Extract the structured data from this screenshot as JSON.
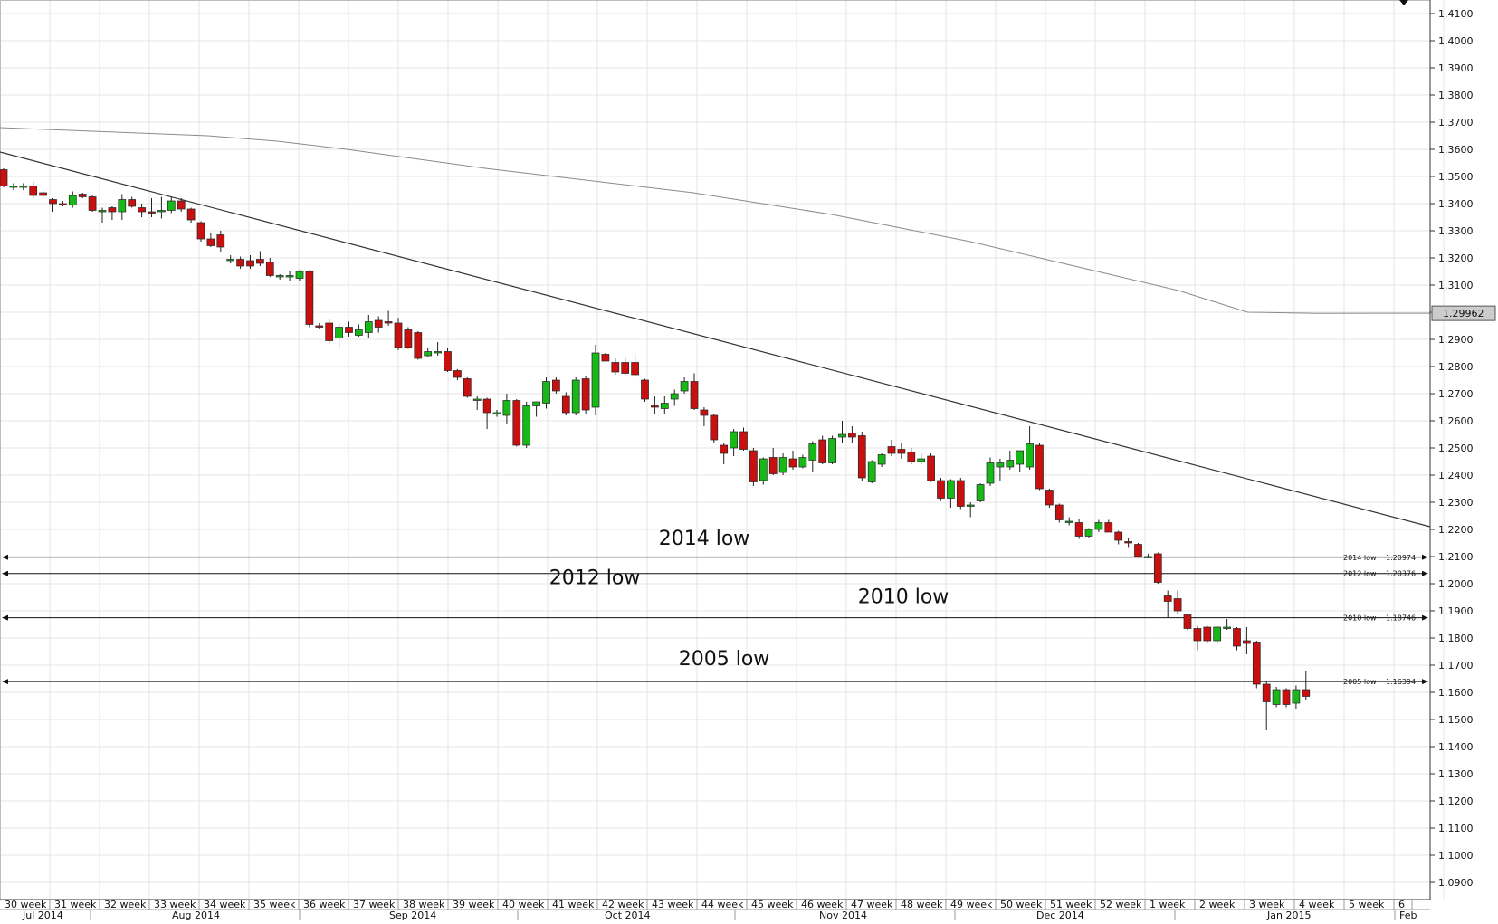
{
  "chart_data": {
    "type": "candlestick",
    "symbol": "EUR/USD",
    "timeframe": "daily",
    "ylim": [
      1.085,
      1.415
    ],
    "y_ticks": [
      1.41,
      1.4,
      1.39,
      1.38,
      1.37,
      1.36,
      1.35,
      1.34,
      1.33,
      1.32,
      1.31,
      1.3,
      1.29,
      1.28,
      1.27,
      1.26,
      1.25,
      1.24,
      1.23,
      1.22,
      1.21,
      1.2,
      1.19,
      1.18,
      1.17,
      1.16,
      1.15,
      1.14,
      1.13,
      1.12,
      1.11,
      1.1,
      1.09
    ],
    "y_tick_labels": [
      "1.4100",
      "1.4000",
      "1.3900",
      "1.3800",
      "1.3700",
      "1.3600",
      "1.3500",
      "1.3400",
      "1.3300",
      "1.3200",
      "1.3100",
      "1.3000",
      "1.2900",
      "1.2800",
      "1.2700",
      "1.2600",
      "1.2500",
      "1.2400",
      "1.2300",
      "1.2200",
      "1.2100",
      "1.2000",
      "1.1900",
      "1.1800",
      "1.1700",
      "1.1600",
      "1.1500",
      "1.1400",
      "1.1300",
      "1.1200",
      "1.1100",
      "1.1000",
      "1.0900"
    ],
    "week_labels": [
      "30 week",
      "31 week",
      "32 week",
      "33 week",
      "34 week",
      "35 week",
      "36 week",
      "37 week",
      "38 week",
      "39 week",
      "40 week",
      "41 week",
      "42 week",
      "43 week",
      "44 week",
      "45 week",
      "46 week",
      "47 week",
      "48 week",
      "49 week",
      "50 week",
      "51 week",
      "52 week",
      "1 week",
      "2 week",
      "3 week",
      "4 week",
      "5 week",
      "6"
    ],
    "month_labels": [
      "Jul 2014",
      "Aug 2014",
      "Sep 2014",
      "Oct 2014",
      "Nov 2014",
      "Dec 2014",
      "Jan 2015",
      "Feb"
    ],
    "current_price": 1.29962,
    "current_price_label": "1.29962",
    "levels": [
      {
        "name": "2014 low",
        "value": 1.20974,
        "value_label": "1.20974",
        "annotation": "2014 low"
      },
      {
        "name": "2012 low",
        "value": 1.20376,
        "value_label": "1.20376",
        "annotation": "2012 low"
      },
      {
        "name": "2010 low",
        "value": 1.18746,
        "value_label": "1.18746",
        "annotation": "2010 low"
      },
      {
        "name": "2005 low",
        "value": 1.16394,
        "value_label": "1.16394",
        "annotation": "2005 low"
      }
    ],
    "trendline": {
      "start_value": 1.359,
      "end_value": 1.221
    },
    "moving_average": [
      1.368,
      1.367,
      1.366,
      1.365,
      1.363,
      1.36,
      1.3565,
      1.353,
      1.35,
      1.347,
      1.344,
      1.34,
      1.336,
      1.331,
      1.326,
      1.32,
      1.314,
      1.308,
      1.3,
      1.2996
    ],
    "candles": [
      {
        "o": 1.3525,
        "h": 1.353,
        "l": 1.346,
        "c": 1.3465
      },
      {
        "o": 1.3465,
        "h": 1.3475,
        "l": 1.345,
        "c": 1.3465
      },
      {
        "o": 1.3465,
        "h": 1.3475,
        "l": 1.345,
        "c": 1.3465
      },
      {
        "o": 1.3465,
        "h": 1.348,
        "l": 1.342,
        "c": 1.343
      },
      {
        "o": 1.344,
        "h": 1.345,
        "l": 1.3425,
        "c": 1.343
      },
      {
        "o": 1.3415,
        "h": 1.342,
        "l": 1.337,
        "c": 1.34
      },
      {
        "o": 1.34,
        "h": 1.341,
        "l": 1.339,
        "c": 1.3395
      },
      {
        "o": 1.3395,
        "h": 1.3445,
        "l": 1.3385,
        "c": 1.343
      },
      {
        "o": 1.3435,
        "h": 1.344,
        "l": 1.342,
        "c": 1.3425
      },
      {
        "o": 1.3425,
        "h": 1.343,
        "l": 1.337,
        "c": 1.3375
      },
      {
        "o": 1.337,
        "h": 1.3385,
        "l": 1.333,
        "c": 1.3375
      },
      {
        "o": 1.3385,
        "h": 1.339,
        "l": 1.334,
        "c": 1.337
      },
      {
        "o": 1.337,
        "h": 1.3435,
        "l": 1.334,
        "c": 1.3415
      },
      {
        "o": 1.3415,
        "h": 1.3425,
        "l": 1.3385,
        "c": 1.339
      },
      {
        "o": 1.3385,
        "h": 1.34,
        "l": 1.335,
        "c": 1.337
      },
      {
        "o": 1.337,
        "h": 1.342,
        "l": 1.335,
        "c": 1.3365
      },
      {
        "o": 1.337,
        "h": 1.3425,
        "l": 1.3345,
        "c": 1.3375
      },
      {
        "o": 1.3375,
        "h": 1.3425,
        "l": 1.3365,
        "c": 1.341
      },
      {
        "o": 1.341,
        "h": 1.342,
        "l": 1.337,
        "c": 1.338
      },
      {
        "o": 1.338,
        "h": 1.3385,
        "l": 1.333,
        "c": 1.334
      },
      {
        "o": 1.333,
        "h": 1.3335,
        "l": 1.326,
        "c": 1.327
      },
      {
        "o": 1.327,
        "h": 1.329,
        "l": 1.324,
        "c": 1.3245
      },
      {
        "o": 1.3285,
        "h": 1.33,
        "l": 1.322,
        "c": 1.324
      },
      {
        "o": 1.3195,
        "h": 1.321,
        "l": 1.318,
        "c": 1.3195
      },
      {
        "o": 1.3195,
        "h": 1.3205,
        "l": 1.316,
        "c": 1.317
      },
      {
        "o": 1.319,
        "h": 1.321,
        "l": 1.316,
        "c": 1.317
      },
      {
        "o": 1.3195,
        "h": 1.3225,
        "l": 1.317,
        "c": 1.318
      },
      {
        "o": 1.3185,
        "h": 1.32,
        "l": 1.313,
        "c": 1.3135
      },
      {
        "o": 1.3135,
        "h": 1.314,
        "l": 1.312,
        "c": 1.3135
      },
      {
        "o": 1.313,
        "h": 1.315,
        "l": 1.3115,
        "c": 1.3135
      },
      {
        "o": 1.3125,
        "h": 1.3155,
        "l": 1.3115,
        "c": 1.315
      },
      {
        "o": 1.315,
        "h": 1.3155,
        "l": 1.2945,
        "c": 1.2955
      },
      {
        "o": 1.295,
        "h": 1.296,
        "l": 1.294,
        "c": 1.2945
      },
      {
        "o": 1.296,
        "h": 1.2975,
        "l": 1.2885,
        "c": 1.2895
      },
      {
        "o": 1.2905,
        "h": 1.296,
        "l": 1.2865,
        "c": 1.2945
      },
      {
        "o": 1.2945,
        "h": 1.2965,
        "l": 1.291,
        "c": 1.2925
      },
      {
        "o": 1.2915,
        "h": 1.2955,
        "l": 1.291,
        "c": 1.2935
      },
      {
        "o": 1.2925,
        "h": 1.299,
        "l": 1.2905,
        "c": 1.2965
      },
      {
        "o": 1.297,
        "h": 1.2985,
        "l": 1.2925,
        "c": 1.2945
      },
      {
        "o": 1.2965,
        "h": 1.3005,
        "l": 1.295,
        "c": 1.296
      },
      {
        "o": 1.296,
        "h": 1.298,
        "l": 1.286,
        "c": 1.287
      },
      {
        "o": 1.2935,
        "h": 1.2945,
        "l": 1.2865,
        "c": 1.287
      },
      {
        "o": 1.2925,
        "h": 1.293,
        "l": 1.2825,
        "c": 1.283
      },
      {
        "o": 1.284,
        "h": 1.287,
        "l": 1.2835,
        "c": 1.2855
      },
      {
        "o": 1.285,
        "h": 1.289,
        "l": 1.284,
        "c": 1.2855
      },
      {
        "o": 1.2855,
        "h": 1.287,
        "l": 1.278,
        "c": 1.2785
      },
      {
        "o": 1.2785,
        "h": 1.279,
        "l": 1.275,
        "c": 1.276
      },
      {
        "o": 1.2755,
        "h": 1.276,
        "l": 1.2685,
        "c": 1.269
      },
      {
        "o": 1.268,
        "h": 1.269,
        "l": 1.264,
        "c": 1.268
      },
      {
        "o": 1.268,
        "h": 1.2685,
        "l": 1.257,
        "c": 1.263
      },
      {
        "o": 1.263,
        "h": 1.264,
        "l": 1.2615,
        "c": 1.263
      },
      {
        "o": 1.262,
        "h": 1.27,
        "l": 1.259,
        "c": 1.2675
      },
      {
        "o": 1.2675,
        "h": 1.268,
        "l": 1.2505,
        "c": 1.251
      },
      {
        "o": 1.251,
        "h": 1.267,
        "l": 1.25,
        "c": 1.2655
      },
      {
        "o": 1.2655,
        "h": 1.2665,
        "l": 1.2615,
        "c": 1.267
      },
      {
        "o": 1.2665,
        "h": 1.276,
        "l": 1.2645,
        "c": 1.2745
      },
      {
        "o": 1.275,
        "h": 1.276,
        "l": 1.27,
        "c": 1.271
      },
      {
        "o": 1.269,
        "h": 1.2705,
        "l": 1.262,
        "c": 1.263
      },
      {
        "o": 1.263,
        "h": 1.276,
        "l": 1.262,
        "c": 1.275
      },
      {
        "o": 1.2755,
        "h": 1.2765,
        "l": 1.2625,
        "c": 1.264
      },
      {
        "o": 1.265,
        "h": 1.288,
        "l": 1.262,
        "c": 1.285
      },
      {
        "o": 1.2845,
        "h": 1.285,
        "l": 1.282,
        "c": 1.282
      },
      {
        "o": 1.2815,
        "h": 1.283,
        "l": 1.277,
        "c": 1.278
      },
      {
        "o": 1.2815,
        "h": 1.283,
        "l": 1.277,
        "c": 1.2775
      },
      {
        "o": 1.2815,
        "h": 1.2845,
        "l": 1.276,
        "c": 1.277
      },
      {
        "o": 1.275,
        "h": 1.2755,
        "l": 1.267,
        "c": 1.268
      },
      {
        "o": 1.2655,
        "h": 1.269,
        "l": 1.2625,
        "c": 1.265
      },
      {
        "o": 1.2645,
        "h": 1.269,
        "l": 1.2625,
        "c": 1.2665
      },
      {
        "o": 1.268,
        "h": 1.2715,
        "l": 1.2655,
        "c": 1.27
      },
      {
        "o": 1.271,
        "h": 1.276,
        "l": 1.27,
        "c": 1.2745
      },
      {
        "o": 1.2745,
        "h": 1.2775,
        "l": 1.264,
        "c": 1.2645
      },
      {
        "o": 1.264,
        "h": 1.265,
        "l": 1.258,
        "c": 1.262
      },
      {
        "o": 1.262,
        "h": 1.2625,
        "l": 1.252,
        "c": 1.253
      },
      {
        "o": 1.251,
        "h": 1.252,
        "l": 1.244,
        "c": 1.248
      },
      {
        "o": 1.25,
        "h": 1.257,
        "l": 1.247,
        "c": 1.256
      },
      {
        "o": 1.256,
        "h": 1.2575,
        "l": 1.249,
        "c": 1.2495
      },
      {
        "o": 1.249,
        "h": 1.25,
        "l": 1.236,
        "c": 1.2375
      },
      {
        "o": 1.238,
        "h": 1.2465,
        "l": 1.2365,
        "c": 1.246
      },
      {
        "o": 1.2465,
        "h": 1.25,
        "l": 1.24,
        "c": 1.2405
      },
      {
        "o": 1.241,
        "h": 1.248,
        "l": 1.24,
        "c": 1.2465
      },
      {
        "o": 1.246,
        "h": 1.249,
        "l": 1.242,
        "c": 1.243
      },
      {
        "o": 1.243,
        "h": 1.2475,
        "l": 1.2425,
        "c": 1.2465
      },
      {
        "o": 1.2455,
        "h": 1.2525,
        "l": 1.241,
        "c": 1.2515
      },
      {
        "o": 1.253,
        "h": 1.2545,
        "l": 1.244,
        "c": 1.2445
      },
      {
        "o": 1.2445,
        "h": 1.2545,
        "l": 1.244,
        "c": 1.2535
      },
      {
        "o": 1.254,
        "h": 1.26,
        "l": 1.252,
        "c": 1.255
      },
      {
        "o": 1.2555,
        "h": 1.258,
        "l": 1.252,
        "c": 1.254
      },
      {
        "o": 1.2545,
        "h": 1.256,
        "l": 1.238,
        "c": 1.239
      },
      {
        "o": 1.2375,
        "h": 1.2455,
        "l": 1.237,
        "c": 1.245
      },
      {
        "o": 1.244,
        "h": 1.248,
        "l": 1.243,
        "c": 1.2475
      },
      {
        "o": 1.2505,
        "h": 1.253,
        "l": 1.247,
        "c": 1.248
      },
      {
        "o": 1.2495,
        "h": 1.252,
        "l": 1.246,
        "c": 1.248
      },
      {
        "o": 1.2485,
        "h": 1.25,
        "l": 1.244,
        "c": 1.245
      },
      {
        "o": 1.245,
        "h": 1.248,
        "l": 1.244,
        "c": 1.246
      },
      {
        "o": 1.247,
        "h": 1.248,
        "l": 1.2375,
        "c": 1.238
      },
      {
        "o": 1.238,
        "h": 1.239,
        "l": 1.2305,
        "c": 1.2315
      },
      {
        "o": 1.2315,
        "h": 1.2385,
        "l": 1.228,
        "c": 1.238
      },
      {
        "o": 1.238,
        "h": 1.239,
        "l": 1.2275,
        "c": 1.2285
      },
      {
        "o": 1.229,
        "h": 1.23,
        "l": 1.2245,
        "c": 1.229
      },
      {
        "o": 1.2305,
        "h": 1.237,
        "l": 1.23,
        "c": 1.2365
      },
      {
        "o": 1.237,
        "h": 1.2465,
        "l": 1.236,
        "c": 1.2445
      },
      {
        "o": 1.243,
        "h": 1.246,
        "l": 1.238,
        "c": 1.2445
      },
      {
        "o": 1.243,
        "h": 1.249,
        "l": 1.242,
        "c": 1.2455
      },
      {
        "o": 1.244,
        "h": 1.249,
        "l": 1.241,
        "c": 1.249
      },
      {
        "o": 1.243,
        "h": 1.258,
        "l": 1.242,
        "c": 1.2515
      },
      {
        "o": 1.251,
        "h": 1.252,
        "l": 1.2345,
        "c": 1.235
      },
      {
        "o": 1.2345,
        "h": 1.235,
        "l": 1.228,
        "c": 1.229
      },
      {
        "o": 1.229,
        "h": 1.2295,
        "l": 1.2225,
        "c": 1.2235
      },
      {
        "o": 1.223,
        "h": 1.2245,
        "l": 1.2215,
        "c": 1.223
      },
      {
        "o": 1.2225,
        "h": 1.224,
        "l": 1.2165,
        "c": 1.2175
      },
      {
        "o": 1.2175,
        "h": 1.2205,
        "l": 1.217,
        "c": 1.22
      },
      {
        "o": 1.22,
        "h": 1.2235,
        "l": 1.219,
        "c": 1.2225
      },
      {
        "o": 1.2225,
        "h": 1.2235,
        "l": 1.219,
        "c": 1.219
      },
      {
        "o": 1.219,
        "h": 1.2195,
        "l": 1.2145,
        "c": 1.216
      },
      {
        "o": 1.2155,
        "h": 1.217,
        "l": 1.2135,
        "c": 1.215
      },
      {
        "o": 1.2145,
        "h": 1.215,
        "l": 1.2095,
        "c": 1.21
      },
      {
        "o": 1.21,
        "h": 1.211,
        "l": 1.2095,
        "c": 1.21
      },
      {
        "o": 1.211,
        "h": 1.2115,
        "l": 1.2,
        "c": 1.2005
      },
      {
        "o": 1.1955,
        "h": 1.1975,
        "l": 1.1875,
        "c": 1.1935
      },
      {
        "o": 1.1945,
        "h": 1.1975,
        "l": 1.189,
        "c": 1.19
      },
      {
        "o": 1.1885,
        "h": 1.189,
        "l": 1.183,
        "c": 1.1835
      },
      {
        "o": 1.1835,
        "h": 1.1845,
        "l": 1.1755,
        "c": 1.179
      },
      {
        "o": 1.184,
        "h": 1.1845,
        "l": 1.178,
        "c": 1.179
      },
      {
        "o": 1.179,
        "h": 1.1845,
        "l": 1.178,
        "c": 1.184
      },
      {
        "o": 1.184,
        "h": 1.187,
        "l": 1.183,
        "c": 1.184
      },
      {
        "o": 1.1835,
        "h": 1.184,
        "l": 1.1755,
        "c": 1.177
      },
      {
        "o": 1.179,
        "h": 1.184,
        "l": 1.174,
        "c": 1.178
      },
      {
        "o": 1.1785,
        "h": 1.179,
        "l": 1.1615,
        "c": 1.163
      },
      {
        "o": 1.163,
        "h": 1.164,
        "l": 1.146,
        "c": 1.1565
      },
      {
        "o": 1.1555,
        "h": 1.162,
        "l": 1.1545,
        "c": 1.161
      },
      {
        "o": 1.161,
        "h": 1.1615,
        "l": 1.1545,
        "c": 1.1555
      },
      {
        "o": 1.156,
        "h": 1.1625,
        "l": 1.154,
        "c": 1.161
      },
      {
        "o": 1.161,
        "h": 1.168,
        "l": 1.157,
        "c": 1.1585
      }
    ]
  }
}
